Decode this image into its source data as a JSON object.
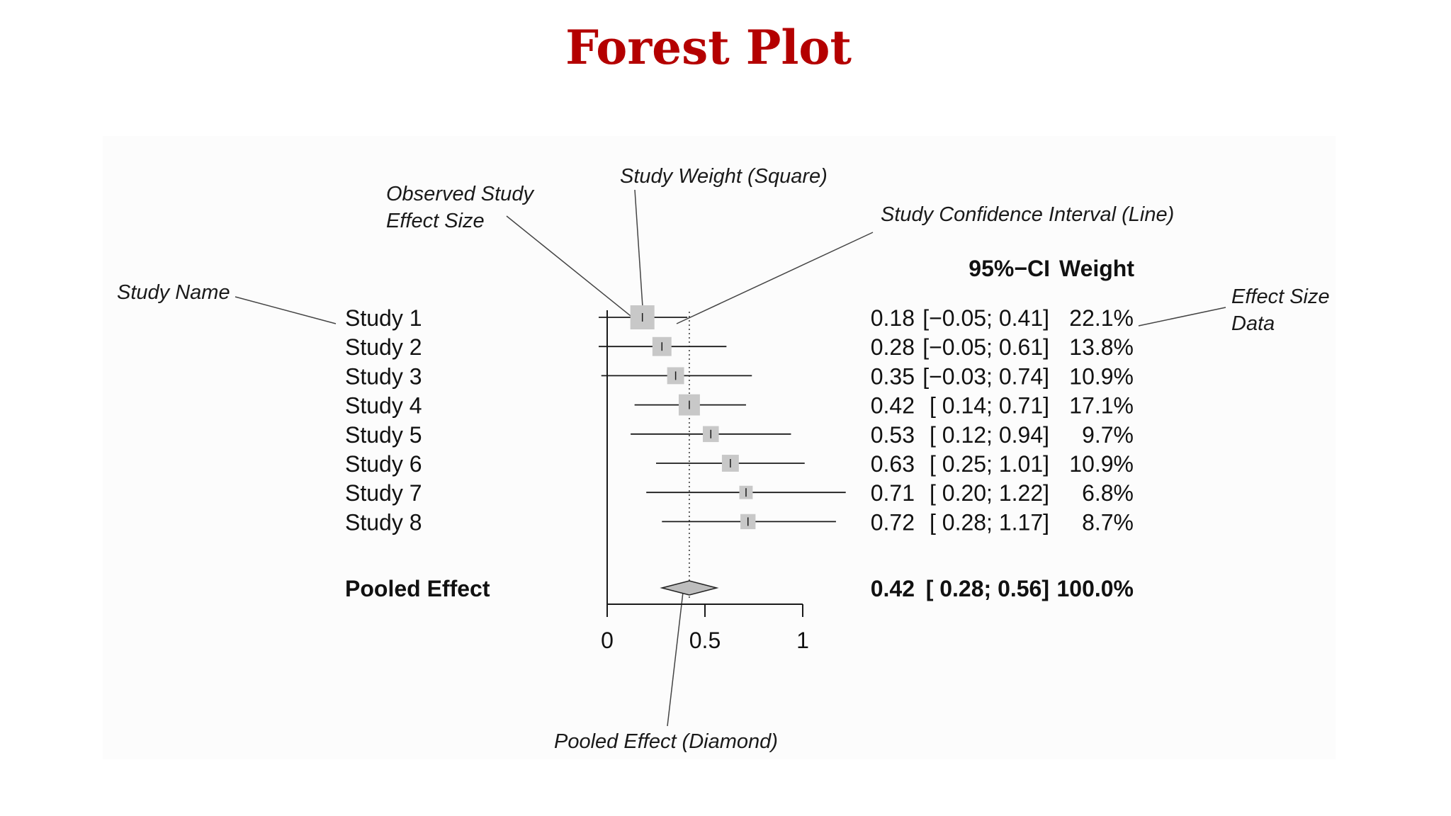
{
  "title": "Forest Plot",
  "annotations": {
    "observed_effect_1": "Observed Study",
    "observed_effect_2": "Effect Size",
    "study_weight": "Study Weight (Square)",
    "study_ci": "Study Confidence Interval (Line)",
    "study_name": "Study Name",
    "effect_size_data_1": "Effect Size",
    "effect_size_data_2": "Data",
    "pooled_effect": "Pooled Effect (Diamond)"
  },
  "chart_data": {
    "type": "forest",
    "columns": {
      "ci_header": "95%−CI",
      "weight_header": "Weight"
    },
    "studies": [
      {
        "name": "Study 1",
        "estimate": 0.18,
        "lower": -0.05,
        "upper": 0.41,
        "weight": 22.1,
        "est_text": "0.18",
        "ci_text": "[−0.05; 0.41]",
        "weight_text": "22.1%"
      },
      {
        "name": "Study 2",
        "estimate": 0.28,
        "lower": -0.05,
        "upper": 0.61,
        "weight": 13.8,
        "est_text": "0.28",
        "ci_text": "[−0.05; 0.61]",
        "weight_text": "13.8%"
      },
      {
        "name": "Study 3",
        "estimate": 0.35,
        "lower": -0.03,
        "upper": 0.74,
        "weight": 10.9,
        "est_text": "0.35",
        "ci_text": "[−0.03; 0.74]",
        "weight_text": "10.9%"
      },
      {
        "name": "Study 4",
        "estimate": 0.42,
        "lower": 0.14,
        "upper": 0.71,
        "weight": 17.1,
        "est_text": "0.42",
        "ci_text": "[ 0.14; 0.71]",
        "weight_text": "17.1%"
      },
      {
        "name": "Study 5",
        "estimate": 0.53,
        "lower": 0.12,
        "upper": 0.94,
        "weight": 9.7,
        "est_text": "0.53",
        "ci_text": "[ 0.12; 0.94]",
        "weight_text": "9.7%"
      },
      {
        "name": "Study 6",
        "estimate": 0.63,
        "lower": 0.25,
        "upper": 1.01,
        "weight": 10.9,
        "est_text": "0.63",
        "ci_text": "[ 0.25; 1.01]",
        "weight_text": "10.9%"
      },
      {
        "name": "Study 7",
        "estimate": 0.71,
        "lower": 0.2,
        "upper": 1.22,
        "weight": 6.8,
        "est_text": "0.71",
        "ci_text": "[ 0.20; 1.22]",
        "weight_text": "6.8%"
      },
      {
        "name": "Study 8",
        "estimate": 0.72,
        "lower": 0.28,
        "upper": 1.17,
        "weight": 8.7,
        "est_text": "0.72",
        "ci_text": "[ 0.28; 1.17]",
        "weight_text": "8.7%"
      }
    ],
    "pooled": {
      "name": "Pooled Effect",
      "estimate": 0.42,
      "lower": 0.28,
      "upper": 0.56,
      "weight": 100.0,
      "est_text": "0.42",
      "ci_text": "[ 0.28; 0.56]",
      "weight_text": "100.0%"
    },
    "x_ticks": [
      0,
      0.5,
      1
    ],
    "x_tick_labels": [
      "0",
      "0.5",
      "1"
    ],
    "reference_line": 0.42,
    "colors": {
      "title": "#b40000",
      "square": "#c8c8c8",
      "diamond": "#bdbdbd",
      "line": "#1a1a1a"
    }
  }
}
